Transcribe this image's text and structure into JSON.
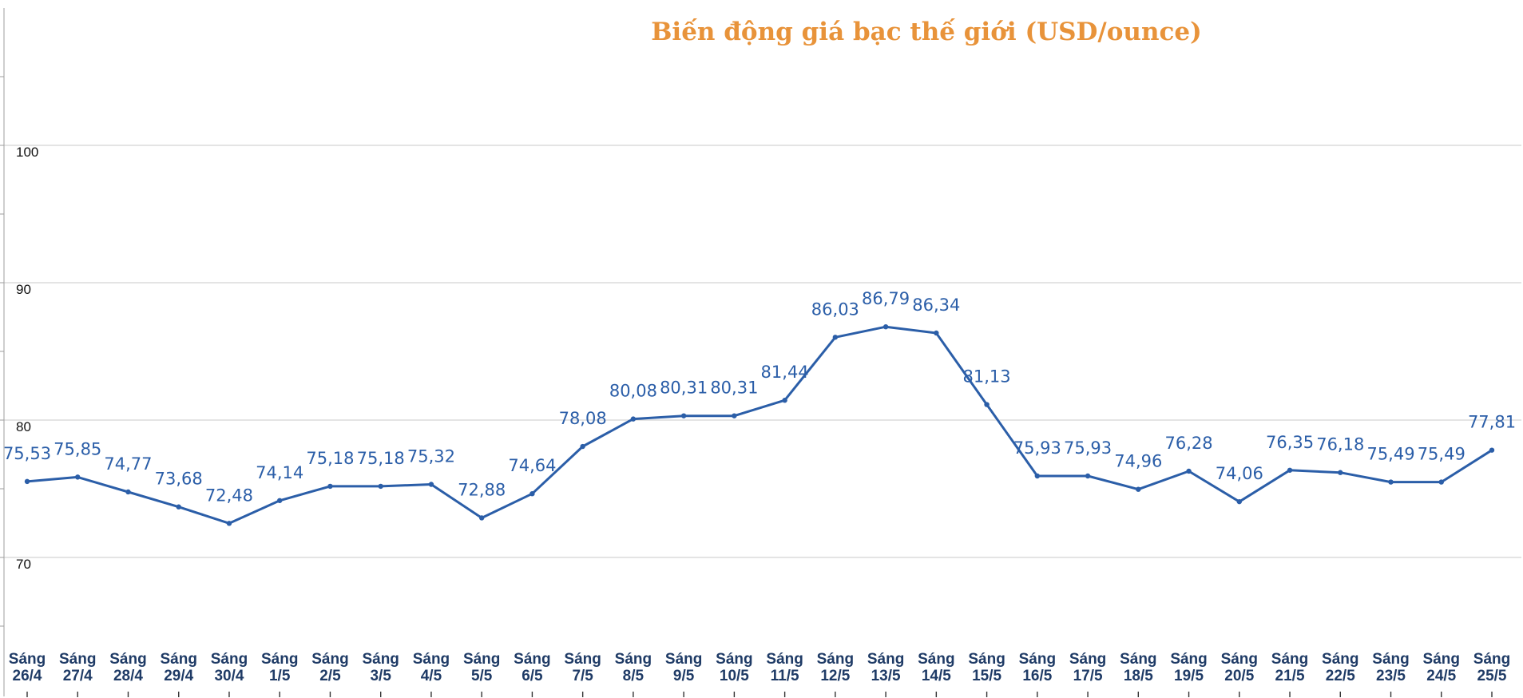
{
  "chart_data": {
    "type": "line",
    "title": "Biến động giá bạc thế giới (USD/ounce)",
    "xlabel": "",
    "ylabel": "",
    "ylim": [
      60,
      110
    ],
    "yticks": [
      70,
      80,
      90,
      100
    ],
    "ytick_labels": [
      "70",
      "80",
      "90",
      "100"
    ],
    "grid": true,
    "line_color": "#2b5ea8",
    "title_color": "#e8933a",
    "categories": [
      [
        "Sáng",
        "26/4"
      ],
      [
        "Sáng",
        "27/4"
      ],
      [
        "Sáng",
        "28/4"
      ],
      [
        "Sáng",
        "29/4"
      ],
      [
        "Sáng",
        "30/4"
      ],
      [
        "Sáng",
        "1/5"
      ],
      [
        "Sáng",
        "2/5"
      ],
      [
        "Sáng",
        "3/5"
      ],
      [
        "Sáng",
        "4/5"
      ],
      [
        "Sáng",
        "5/5"
      ],
      [
        "Sáng",
        "6/5"
      ],
      [
        "Sáng",
        "7/5"
      ],
      [
        "Sáng",
        "8/5"
      ],
      [
        "Sáng",
        "9/5"
      ],
      [
        "Sáng",
        "10/5"
      ],
      [
        "Sáng",
        "11/5"
      ],
      [
        "Sáng",
        "12/5"
      ],
      [
        "Sáng",
        "13/5"
      ],
      [
        "Sáng",
        "14/5"
      ],
      [
        "Sáng",
        "15/5"
      ],
      [
        "Sáng",
        "16/5"
      ],
      [
        "Sáng",
        "17/5"
      ],
      [
        "Sáng",
        "18/5"
      ],
      [
        "Sáng",
        "19/5"
      ],
      [
        "Sáng",
        "20/5"
      ],
      [
        "Sáng",
        "21/5"
      ],
      [
        "Sáng",
        "22/5"
      ],
      [
        "Sáng",
        "23/5"
      ],
      [
        "Sáng",
        "24/5"
      ],
      [
        "Sáng",
        "25/5"
      ]
    ],
    "values": [
      75.53,
      75.85,
      74.77,
      73.68,
      72.48,
      74.14,
      75.18,
      75.18,
      75.32,
      72.88,
      74.64,
      78.08,
      80.08,
      80.31,
      80.31,
      81.44,
      86.03,
      86.79,
      86.34,
      81.13,
      75.93,
      75.93,
      74.96,
      76.28,
      74.06,
      76.35,
      76.18,
      75.49,
      75.49,
      77.81
    ],
    "value_labels": [
      "75,53",
      "75,85",
      "74,77",
      "73,68",
      "72,48",
      "74,14",
      "75,18",
      "75,18",
      "75,32",
      "72,88",
      "74,64",
      "78,08",
      "80,08",
      "80,31",
      "80,31",
      "81,44",
      "86,03",
      "86,79",
      "86,34",
      "81,13",
      "75,93",
      "75,93",
      "74,96",
      "76,28",
      "74,06",
      "76,35",
      "76,18",
      "75,49",
      "75,49",
      "77,81"
    ]
  }
}
